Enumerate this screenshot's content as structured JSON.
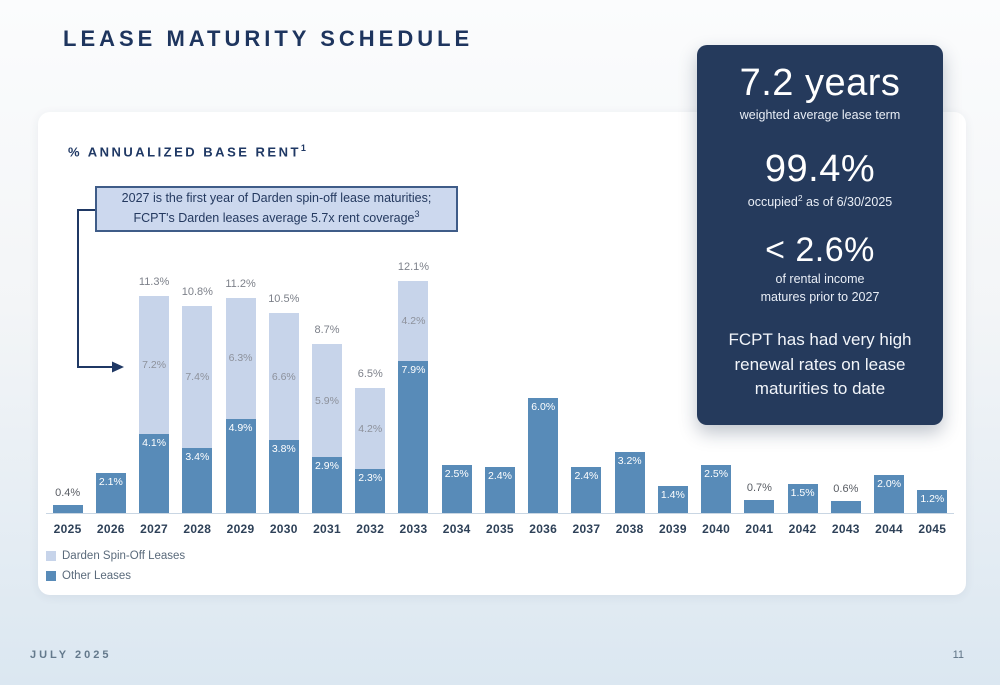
{
  "slide": {
    "title": "LEASE MATURITY SCHEDULE",
    "footer": {
      "date": "JULY 2025",
      "page": "11"
    }
  },
  "chart_header": {
    "subtitle": "% ANNUALIZED BASE RENT",
    "subtitle_sup": "1"
  },
  "callout": {
    "line1": "2027 is the first year of Darden spin-off lease maturities;",
    "line2": "FCPT's Darden leases average 5.7x rent coverage",
    "line2_sup": "3"
  },
  "legend": [
    {
      "label": "Darden Spin-Off Leases",
      "color": "#c7d4ea"
    },
    {
      "label": "Other Leases",
      "color": "#588bb8"
    }
  ],
  "stat_panel": {
    "stat1": {
      "value": "7.2 years",
      "caption": "weighted average lease term"
    },
    "stat2": {
      "value": "99.4%",
      "caption_pre": "occupied",
      "caption_sup": "2",
      "caption_post": " as of 6/30/2025"
    },
    "stat3": {
      "value": "< 2.6%",
      "caption_line1": "of rental income",
      "caption_line2": "matures prior to 2027"
    },
    "statement": "FCPT has had very high renewal rates on lease maturities to date"
  },
  "chart_data": {
    "type": "bar",
    "stacked": true,
    "title": "% ANNUALIZED BASE RENT",
    "ylabel": "% of annualized base rent",
    "unit": "%",
    "ylim": [
      0,
      13
    ],
    "gridlines": false,
    "legend_position": "bottom-left",
    "colors": {
      "other": "#588bb8",
      "darden": "#c7d4ea"
    },
    "categories": [
      "2025",
      "2026",
      "2027",
      "2028",
      "2029",
      "2030",
      "2031",
      "2032",
      "2033",
      "2034",
      "2035",
      "2036",
      "2037",
      "2038",
      "2039",
      "2040",
      "2041",
      "2042",
      "2043",
      "2044",
      "2045"
    ],
    "series": [
      {
        "name": "Other Leases",
        "color": "#588bb8",
        "values": [
          0.4,
          2.1,
          4.1,
          3.4,
          4.9,
          3.8,
          2.9,
          2.3,
          7.9,
          2.5,
          2.4,
          6.0,
          2.4,
          3.2,
          1.4,
          2.5,
          0.7,
          1.5,
          0.6,
          2.0,
          1.2
        ]
      },
      {
        "name": "Darden Spin-Off Leases",
        "color": "#c7d4ea",
        "values": [
          0,
          0,
          7.2,
          7.4,
          6.3,
          6.6,
          5.9,
          4.2,
          4.2,
          0,
          0,
          0,
          0,
          0,
          0,
          0,
          0,
          0,
          0,
          0,
          0
        ]
      }
    ],
    "stack_total_labels": [
      "",
      "",
      "11.3%",
      "10.8%",
      "11.2%",
      "10.5%",
      "8.7%",
      "6.5%",
      "12.1%",
      "",
      "",
      "",
      "",
      "",
      "",
      "",
      "",
      "",
      "",
      "",
      ""
    ],
    "value_label_positions": [
      "above",
      "inside",
      "inside",
      "inside",
      "inside",
      "inside",
      "inside",
      "inside",
      "inside",
      "inside",
      "inside",
      "inside",
      "inside",
      "inside",
      "inside",
      "inside",
      "above",
      "inside",
      "above",
      "inside",
      "inside"
    ]
  }
}
